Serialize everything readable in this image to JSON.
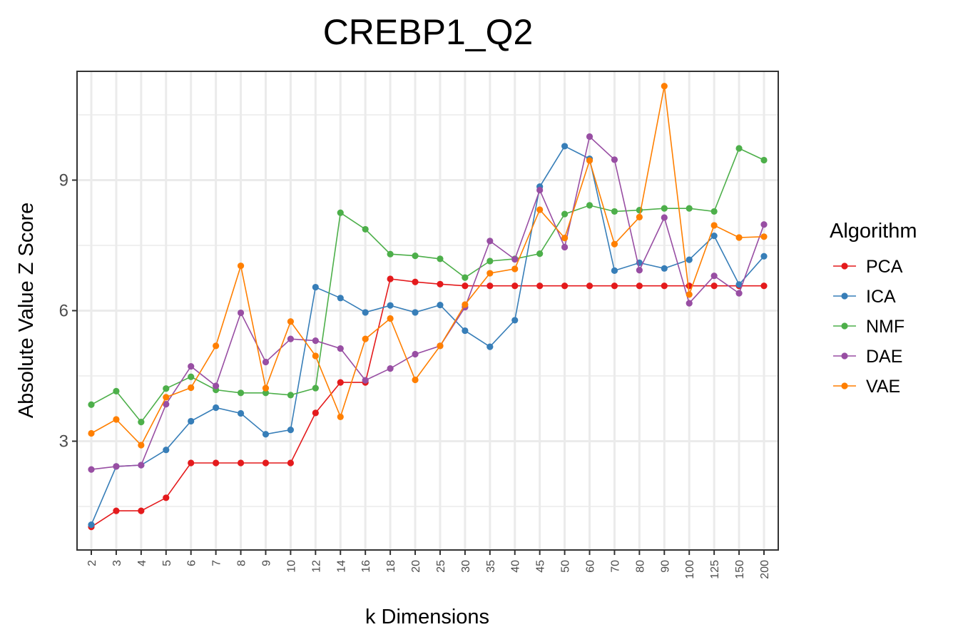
{
  "chart_data": {
    "type": "line",
    "title": "CREBP1_Q2",
    "xlabel": "k Dimensions",
    "ylabel": "Absolute Value Z Score",
    "categories": [
      "2",
      "3",
      "4",
      "5",
      "6",
      "7",
      "8",
      "9",
      "10",
      "12",
      "14",
      "16",
      "18",
      "20",
      "25",
      "30",
      "35",
      "40",
      "45",
      "50",
      "60",
      "70",
      "80",
      "90",
      "100",
      "125",
      "150",
      "200"
    ],
    "yticks": [
      3,
      6,
      9
    ],
    "ylim": [
      0.5,
      11.5
    ],
    "grid": true,
    "legend": {
      "title": "Algorithm",
      "position": "right"
    },
    "series": [
      {
        "name": "PCA",
        "color": "#e41a1c",
        "values": [
          1.03,
          1.4,
          1.4,
          1.7,
          2.5,
          2.5,
          2.5,
          2.5,
          2.5,
          3.65,
          4.35,
          4.35,
          6.73,
          6.66,
          6.61,
          6.57,
          6.57,
          6.57,
          6.57,
          6.57,
          6.57,
          6.57,
          6.57,
          6.57,
          6.57,
          6.57,
          6.57,
          6.57
        ]
      },
      {
        "name": "ICA",
        "color": "#377eb8",
        "values": [
          1.08,
          2.42,
          2.45,
          2.8,
          3.46,
          3.77,
          3.64,
          3.16,
          3.26,
          6.54,
          6.29,
          5.96,
          6.12,
          5.96,
          6.13,
          5.54,
          5.17,
          5.78,
          8.85,
          9.78,
          9.49,
          6.92,
          7.1,
          6.97,
          7.17,
          7.72,
          6.6,
          7.25
        ]
      },
      {
        "name": "NMF",
        "color": "#4daf4a",
        "values": [
          3.84,
          4.15,
          3.44,
          4.21,
          4.48,
          4.18,
          4.11,
          4.11,
          4.06,
          4.22,
          8.25,
          7.87,
          7.3,
          7.26,
          7.19,
          6.76,
          7.14,
          7.19,
          7.31,
          8.22,
          8.42,
          8.28,
          8.31,
          8.35,
          8.35,
          8.28,
          9.73,
          9.46
        ]
      },
      {
        "name": "DAE",
        "color": "#984ea3",
        "values": [
          2.35,
          2.42,
          2.45,
          3.85,
          4.72,
          4.27,
          5.95,
          4.82,
          5.35,
          5.31,
          5.13,
          4.4,
          4.67,
          5.0,
          5.19,
          6.08,
          7.6,
          7.18,
          8.77,
          7.46,
          10.0,
          9.47,
          6.93,
          8.14,
          6.17,
          6.8,
          6.4,
          7.98
        ]
      },
      {
        "name": "VAE",
        "color": "#ff7f00",
        "values": [
          3.18,
          3.5,
          2.91,
          4.01,
          4.23,
          5.19,
          7.03,
          4.22,
          5.75,
          4.96,
          3.56,
          5.35,
          5.82,
          4.41,
          5.19,
          6.14,
          6.86,
          6.96,
          8.32,
          7.67,
          9.45,
          7.53,
          8.15,
          11.16,
          6.37,
          7.96,
          7.68,
          7.7
        ]
      }
    ]
  }
}
